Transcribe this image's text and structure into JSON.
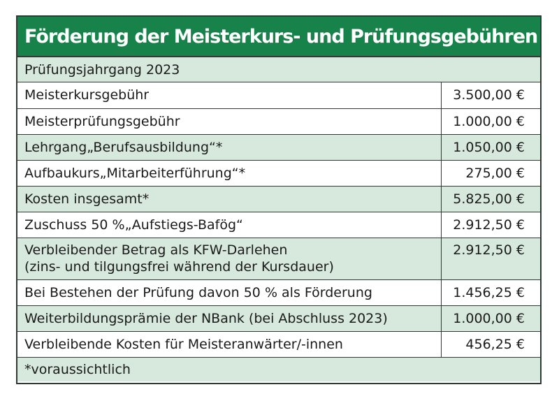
{
  "title": "Förderung der Meisterkurs- und Prüfungsgebühren",
  "year_label": "Prüfungsjahrgang 2023",
  "rows": [
    {
      "label": "Meisterkursgebühr",
      "label2": "",
      "amount": "3.500,00 €"
    },
    {
      "label": "Meisterprüfungsgebühr",
      "label2": "",
      "amount": "1.000,00 €"
    },
    {
      "label": "Lehrgang„Berufsausbildung“*",
      "label2": "",
      "amount": "1.050,00 €"
    },
    {
      "label": "Aufbaukurs„Mitarbeiterführung“*",
      "label2": "",
      "amount": "275,00 €"
    },
    {
      "label": "Kosten insgesamt*",
      "label2": "",
      "amount": "5.825,00 €"
    },
    {
      "label": "Zuschuss 50 %„Aufstiegs-Bafög“",
      "label2": "",
      "amount": "2.912,50 €"
    },
    {
      "label": "Verbleibender Betrag als KFW-Darlehen",
      "label2": "(zins- und tilgungsfrei während der Kursdauer)",
      "amount": "2.912,50 €"
    },
    {
      "label": "Bei Bestehen der Prüfung davon 50 % als Förderung",
      "label2": "",
      "amount": "1.456,25 €"
    },
    {
      "label": "Weiterbildungsprämie der NBank (bei Abschluss 2023)",
      "label2": "",
      "amount": "1.000,00 €"
    },
    {
      "label": "Verbleibende Kosten für Meisteranwärter/-innen",
      "label2": "",
      "amount": "456,25 €"
    }
  ],
  "footnote": "*voraussichtlich",
  "colors": {
    "header_green": "#17834a",
    "row_shade": "#d7e8dd",
    "border": "#2f3a34"
  }
}
